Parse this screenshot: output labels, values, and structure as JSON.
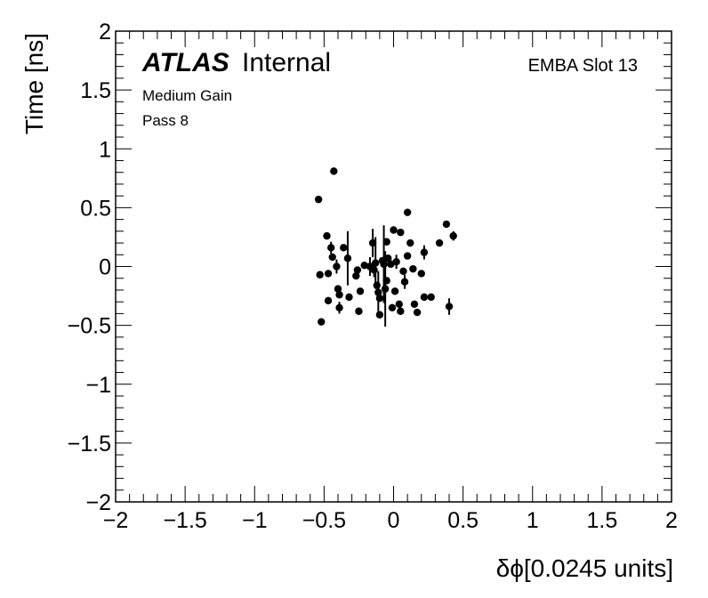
{
  "chart_data": {
    "type": "scatter",
    "xlabel": "δϕ[0.0245 units]",
    "ylabel": "Time [ns]",
    "xlim": [
      -2,
      2
    ],
    "ylim": [
      -2,
      2
    ],
    "x_ticks": [
      -2,
      -1.5,
      -1,
      -0.5,
      0,
      0.5,
      1,
      1.5,
      2
    ],
    "y_ticks": [
      -2,
      -1.5,
      -1,
      -0.5,
      0,
      0.5,
      1,
      1.5,
      2
    ],
    "x_tick_labels": [
      "−2",
      "−1.5",
      "−1",
      "−0.5",
      "0",
      "0.5",
      "1",
      "1.5",
      "2"
    ],
    "y_tick_labels": [
      "−2",
      "−1.5",
      "−1",
      "−0.5",
      "0",
      "0.5",
      "1",
      "1.5",
      "2"
    ],
    "grid": false,
    "marker_color": "#000000",
    "annotations": {
      "atlas": "ATLAS",
      "internal": "Internal",
      "gain": "Medium Gain",
      "pass": "Pass 8",
      "slot": "EMBA Slot 13"
    },
    "points": [
      {
        "x": -0.54,
        "y": 0.57,
        "err": 0.0
      },
      {
        "x": -0.43,
        "y": 0.81,
        "err": 0.0
      },
      {
        "x": -0.53,
        "y": -0.07,
        "err": 0.0
      },
      {
        "x": -0.52,
        "y": -0.47,
        "err": 0.0
      },
      {
        "x": -0.48,
        "y": 0.26,
        "err": 0.0
      },
      {
        "x": -0.47,
        "y": -0.06,
        "err": 0.0
      },
      {
        "x": -0.47,
        "y": -0.29,
        "err": 0.0
      },
      {
        "x": -0.45,
        "y": 0.16,
        "err": 0.05
      },
      {
        "x": -0.44,
        "y": 0.08,
        "err": 0.0
      },
      {
        "x": -0.41,
        "y": 0.0,
        "err": 0.06
      },
      {
        "x": -0.4,
        "y": -0.19,
        "err": 0.0
      },
      {
        "x": -0.39,
        "y": -0.24,
        "err": 0.0
      },
      {
        "x": -0.39,
        "y": -0.35,
        "err": 0.05
      },
      {
        "x": -0.36,
        "y": 0.16,
        "err": 0.0
      },
      {
        "x": -0.33,
        "y": 0.07,
        "err": 0.23
      },
      {
        "x": -0.32,
        "y": -0.26,
        "err": 0.0
      },
      {
        "x": -0.27,
        "y": -0.08,
        "err": 0.0
      },
      {
        "x": -0.26,
        "y": -0.03,
        "err": 0.0
      },
      {
        "x": -0.24,
        "y": -0.21,
        "err": 0.0
      },
      {
        "x": -0.25,
        "y": -0.38,
        "err": 0.0
      },
      {
        "x": -0.21,
        "y": 0.01,
        "err": 0.0
      },
      {
        "x": -0.17,
        "y": 0.0,
        "err": 0.08
      },
      {
        "x": -0.15,
        "y": 0.2,
        "err": 0.12
      },
      {
        "x": -0.14,
        "y": -0.03,
        "err": 0.06
      },
      {
        "x": -0.13,
        "y": 0.03,
        "err": 0.22
      },
      {
        "x": -0.12,
        "y": -0.16,
        "err": 0.0
      },
      {
        "x": -0.11,
        "y": -0.22,
        "err": 0.18
      },
      {
        "x": -0.1,
        "y": -0.27,
        "err": 0.0
      },
      {
        "x": -0.1,
        "y": -0.41,
        "err": 0.0
      },
      {
        "x": -0.08,
        "y": 0.05,
        "err": 0.0
      },
      {
        "x": -0.07,
        "y": 0.02,
        "err": 0.33
      },
      {
        "x": -0.06,
        "y": -0.19,
        "err": 0.32
      },
      {
        "x": -0.05,
        "y": 0.21,
        "err": 0.0
      },
      {
        "x": -0.05,
        "y": -0.12,
        "err": 0.0
      },
      {
        "x": -0.04,
        "y": 0.07,
        "err": 0.0
      },
      {
        "x": -0.02,
        "y": 0.02,
        "err": 0.0
      },
      {
        "x": -0.01,
        "y": -0.35,
        "err": 0.0
      },
      {
        "x": 0.0,
        "y": 0.31,
        "err": 0.0
      },
      {
        "x": 0.01,
        "y": -0.21,
        "err": 0.0
      },
      {
        "x": 0.02,
        "y": 0.04,
        "err": 0.06
      },
      {
        "x": 0.04,
        "y": -0.32,
        "err": 0.0
      },
      {
        "x": 0.05,
        "y": 0.29,
        "err": 0.0
      },
      {
        "x": 0.05,
        "y": -0.38,
        "err": 0.0
      },
      {
        "x": 0.07,
        "y": -0.04,
        "err": 0.0
      },
      {
        "x": 0.08,
        "y": -0.13,
        "err": 0.06
      },
      {
        "x": 0.1,
        "y": 0.46,
        "err": 0.0
      },
      {
        "x": 0.1,
        "y": 0.09,
        "err": 0.0
      },
      {
        "x": 0.12,
        "y": 0.2,
        "err": 0.0
      },
      {
        "x": 0.14,
        "y": -0.02,
        "err": 0.0
      },
      {
        "x": 0.15,
        "y": -0.32,
        "err": 0.0
      },
      {
        "x": 0.17,
        "y": -0.39,
        "err": 0.0
      },
      {
        "x": 0.2,
        "y": -0.06,
        "err": 0.0
      },
      {
        "x": 0.22,
        "y": 0.12,
        "err": 0.06
      },
      {
        "x": 0.22,
        "y": -0.26,
        "err": 0.0
      },
      {
        "x": 0.27,
        "y": -0.26,
        "err": 0.0
      },
      {
        "x": 0.33,
        "y": 0.2,
        "err": 0.0
      },
      {
        "x": 0.38,
        "y": 0.36,
        "err": 0.0
      },
      {
        "x": 0.4,
        "y": -0.34,
        "err": 0.07
      },
      {
        "x": 0.43,
        "y": 0.26,
        "err": 0.04
      }
    ]
  }
}
